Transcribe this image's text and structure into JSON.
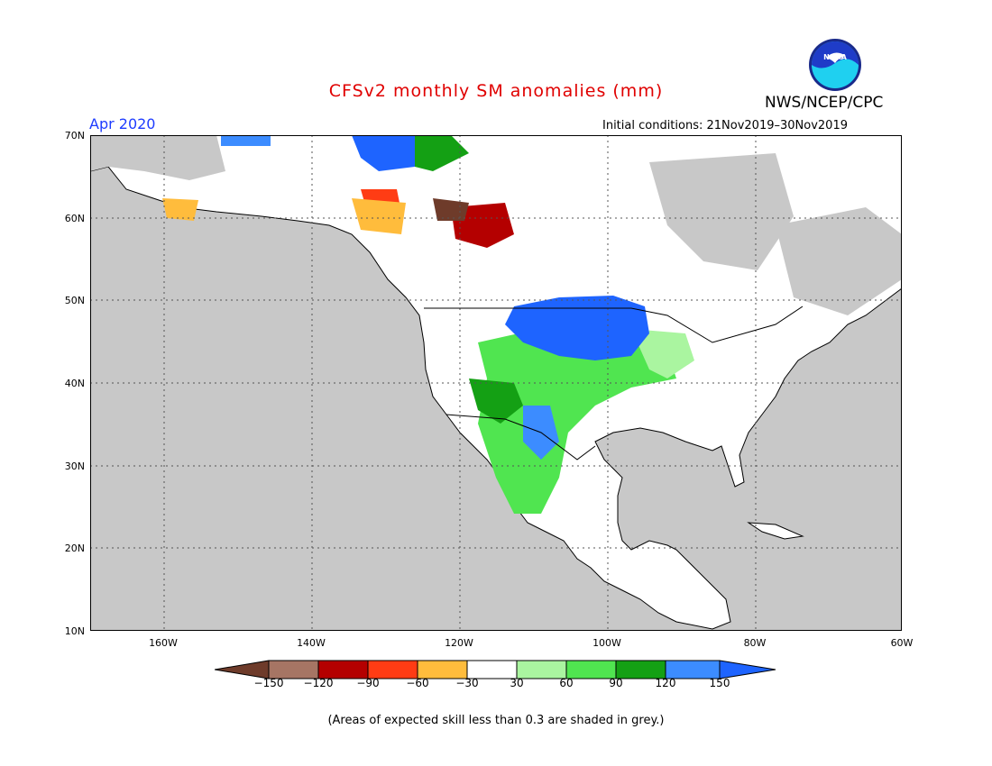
{
  "title": "CFSv2 monthly SM anomalies (mm)",
  "agency": "NWS/NCEP/CPC",
  "logo_text": "NOAA",
  "target_month": "Apr 2020",
  "initial_conditions": "Initial conditions: 21Nov2019–30Nov2019",
  "note": "(Areas of expected skill less than 0.3 are shaded in grey.)",
  "map": {
    "lat_labels": [
      "70N",
      "60N",
      "50N",
      "40N",
      "30N",
      "20N",
      "10N"
    ],
    "lon_labels": [
      "160W",
      "140W",
      "120W",
      "100W",
      "80W",
      "60W"
    ],
    "extent": {
      "lon_min": -170,
      "lon_max": -60,
      "lat_min": 10,
      "lat_max": 70
    },
    "ocean_color": "#c8c8c8",
    "land_color": "#ffffff"
  },
  "colorbar": {
    "labels": [
      "−150",
      "−120",
      "−90",
      "−60",
      "−30",
      "30",
      "60",
      "90",
      "120",
      "150"
    ],
    "colors": [
      "#6e3b2a",
      "#a67564",
      "#b40000",
      "#ff3c14",
      "#ffbc3c",
      "#ffffff",
      "#aaf5a0",
      "#50e550",
      "#14a014",
      "#3c8cff",
      "#1e64ff"
    ]
  }
}
